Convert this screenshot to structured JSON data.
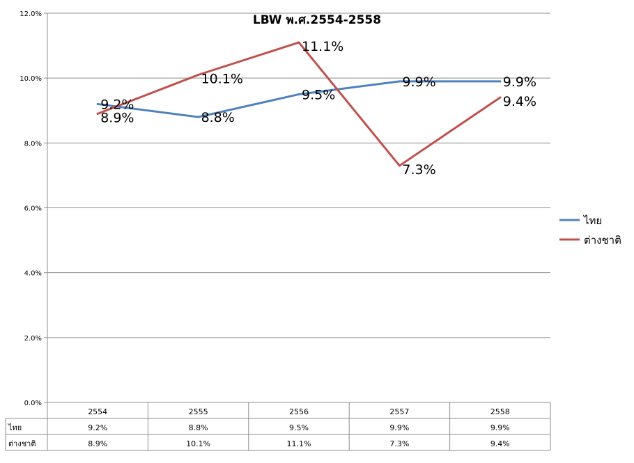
{
  "chart_data": {
    "type": "line",
    "title": "LBW  พ.ศ.2554-2558",
    "categories": [
      "2554",
      "2555",
      "2556",
      "2557",
      "2558"
    ],
    "series": [
      {
        "name": "ไทย",
        "color": "#4F81BD",
        "values": [
          9.2,
          8.8,
          9.5,
          9.9,
          9.9
        ],
        "labels": [
          "9.2%",
          "8.8%",
          "9.5%",
          "9.9%",
          "9.9%"
        ]
      },
      {
        "name": "ต่างชาติ",
        "color": "#C0504D",
        "values": [
          8.9,
          10.1,
          11.1,
          7.3,
          9.4
        ],
        "labels": [
          "8.9%",
          "10.1%",
          "11.1%",
          "7.3%",
          "9.4%"
        ]
      }
    ],
    "ylim": [
      0,
      12
    ],
    "yticks": [
      "0.0%",
      "2.0%",
      "4.0%",
      "6.0%",
      "8.0%",
      "10.0%",
      "12.0%"
    ],
    "grid": true,
    "legend": "right",
    "data_table": true
  }
}
